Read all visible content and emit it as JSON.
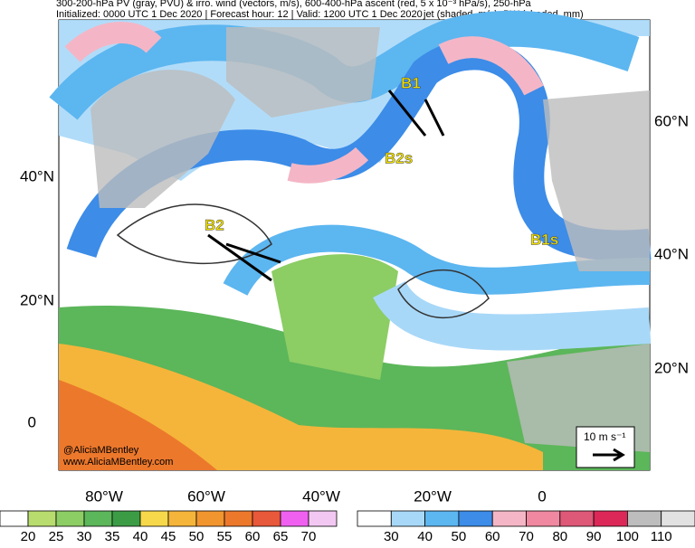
{
  "header": {
    "title": "300-200-hPa PV (gray, PVU) & irro. wind (vectors, m/s), 600-400-hPa ascent (red, 5 x 10⁻³ hPa/s), 250-hPa",
    "init": "Initialized: 0000 UTC 1 Dec 2020 | Forecast hour: 12 | Valid: 1200 UTC 1 Dec 2020",
    "fields": "jet (shaded, m/s), PW (shaded, mm)"
  },
  "map": {
    "lat_left": [
      "40°N",
      "20°N",
      "0"
    ],
    "lat_right": [
      "60°N",
      "40°N",
      "20°N"
    ],
    "lon": [
      "80°W",
      "60°W",
      "40°W",
      "20°W",
      "0"
    ],
    "annotations": [
      "B1",
      "B2s",
      "B2",
      "B1s"
    ],
    "credit": [
      "@AliciaMBentley",
      "www.AliciaMBentley.com"
    ],
    "scale": "10 m s⁻¹"
  },
  "colorbars": [
    {
      "name": "PW",
      "labels": [
        20,
        25,
        30,
        35,
        40,
        45,
        50,
        55,
        60,
        65,
        70
      ],
      "colors": [
        "#ffffff",
        "#b8dc6e",
        "#8ccd64",
        "#5cb65a",
        "#3c9c46",
        "#f7d84a",
        "#f5b53a",
        "#f1952f",
        "#ec782c",
        "#e8583a",
        "#f060f0",
        "#f2c8f2"
      ]
    },
    {
      "name": "jet",
      "labels": [
        30,
        40,
        50,
        60,
        70,
        80,
        90,
        100,
        110
      ],
      "colors": [
        "#ffffff",
        "#a8d8f8",
        "#5cb6f0",
        "#3c8ce8",
        "#f4b6c6",
        "#ef88a0",
        "#de5878",
        "#dc2858",
        "#bdbdbd",
        "#e2e2e2"
      ]
    }
  ]
}
